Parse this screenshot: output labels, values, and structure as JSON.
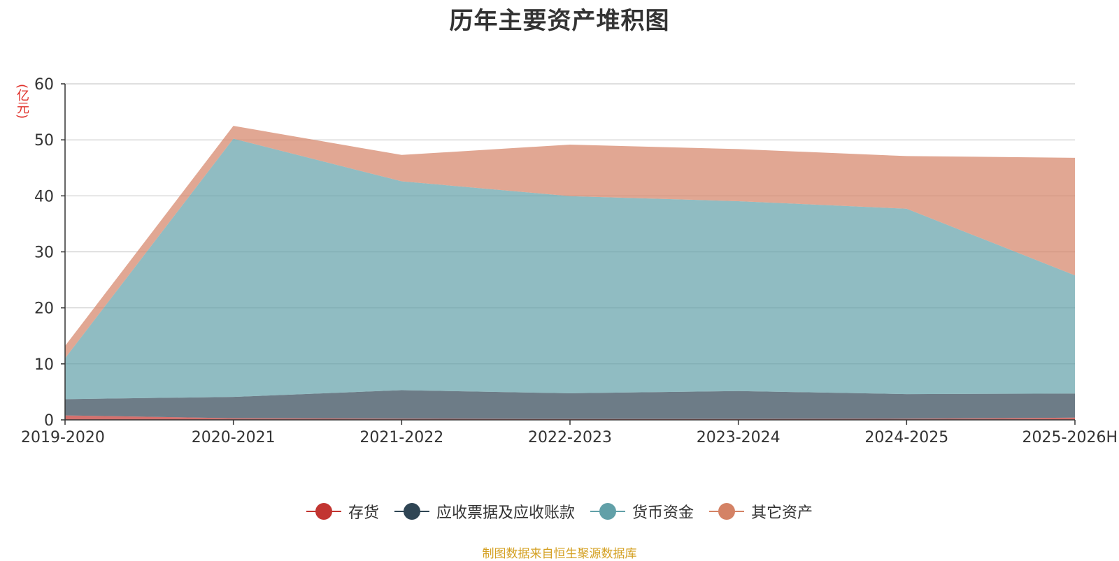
{
  "chart_data": {
    "type": "area",
    "stacked": true,
    "title": "历年主要资产堆积图",
    "unit_label": "(亿元)",
    "categories": [
      "2019-2020",
      "2020-2021",
      "2021-2022",
      "2022-2023",
      "2023-2024",
      "2024-2025",
      "2025-2026H"
    ],
    "ylim": [
      0,
      60
    ],
    "yticks": [
      0,
      10,
      20,
      30,
      40,
      50,
      60
    ],
    "grid": true,
    "legend_position": "bottom",
    "series": [
      {
        "name": "存货",
        "color": "#c23531",
        "values": [
          0.8,
          0.3,
          0.2,
          0.15,
          0.15,
          0.2,
          0.4
        ]
      },
      {
        "name": "应收票据及应收账款",
        "color": "#2f4554",
        "values": [
          2.9,
          3.8,
          5.1,
          4.6,
          5.0,
          4.4,
          4.3
        ]
      },
      {
        "name": "货币资金",
        "color": "#61a0a8",
        "values": [
          7.3,
          46.1,
          37.3,
          35.2,
          33.9,
          33.1,
          21.1
        ]
      },
      {
        "name": "其它资产",
        "color": "#d48265",
        "values": [
          2.2,
          2.3,
          4.7,
          9.2,
          9.3,
          9.4,
          21.0
        ]
      }
    ]
  },
  "footer": {
    "source": "制图数据来自恒生聚源数据库"
  }
}
